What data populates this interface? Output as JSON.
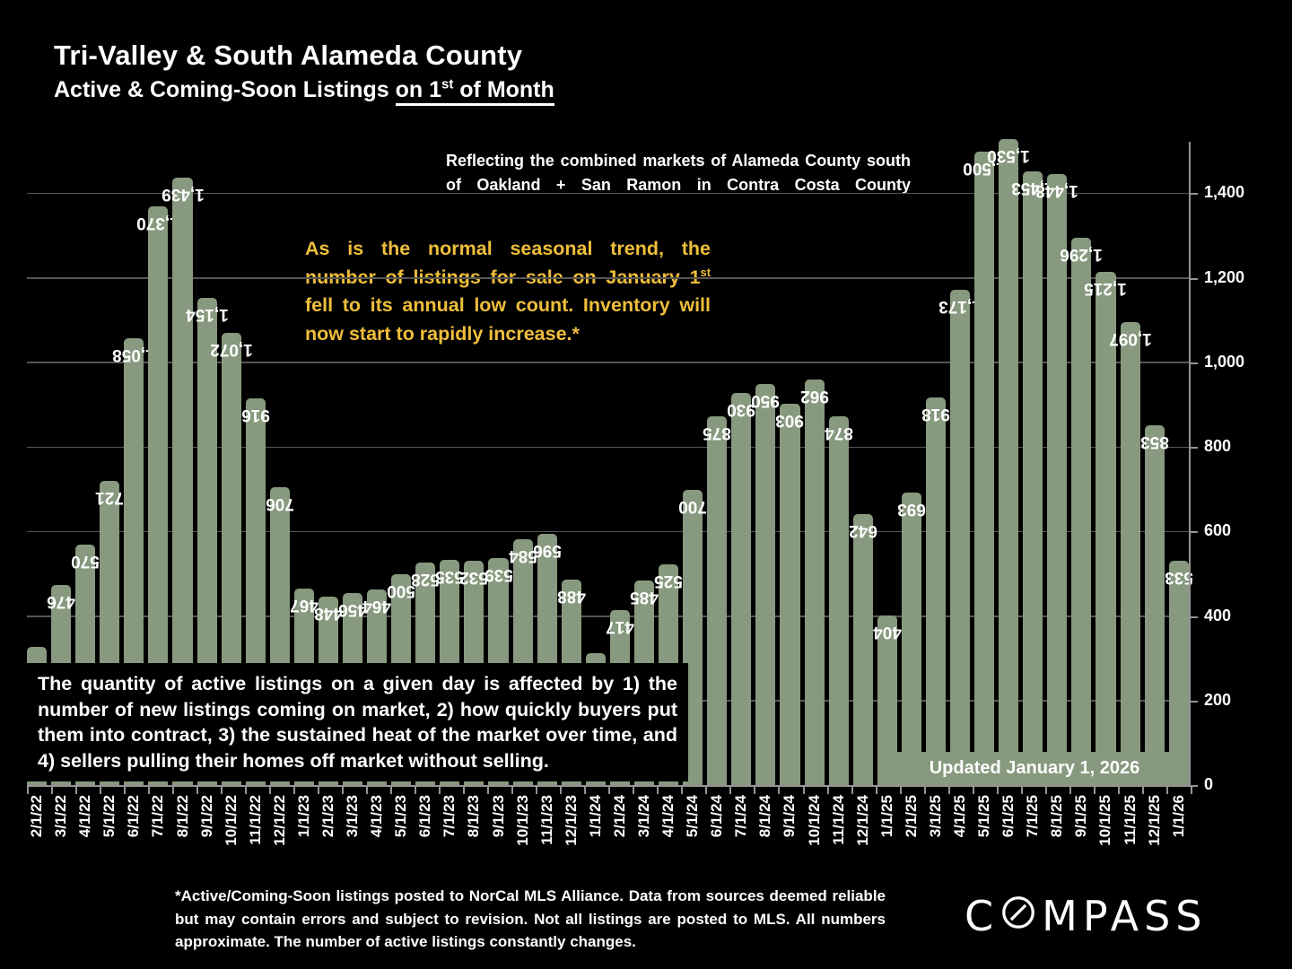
{
  "title": {
    "line1": "Tri-Valley & South Alameda County",
    "line2_pre": "Active & Coming-Soon Listings ",
    "line2_underlined_start": "on 1",
    "line2_sup": "st",
    "line2_underlined_end": " of Month"
  },
  "annotations": {
    "market_note": "Reflecting the combined markets of Alameda County south of Oakland + San Ramon in Contra Costa County",
    "seasonal_pre": "As is the normal seasonal trend, the number of listings for sale on January 1",
    "seasonal_sup": "st",
    "seasonal_post": " fell to its annual low count. Inventory will now start to rapidly increase.*",
    "explainer": "The quantity of active listings on a given day is affected by 1) the number of new listings coming on market, 2) how quickly buyers put them into contract, 3) the sustained heat of the market over time, and 4) sellers pulling their homes off market without selling.",
    "updated": "Updated January 1, 2026",
    "footnote": "*Active/Coming-Soon listings posted to NorCal MLS Alliance.  Data from sources deemed reliable but may contain errors and subject to revision.  Not all listings are posted to MLS. All numbers approximate. The number of active listings constantly changes."
  },
  "logo": {
    "pre": "C",
    "post": "MPASS",
    "name": "COMPASS"
  },
  "colors": {
    "background": "#000000",
    "bar_green": "#87997E",
    "accent_yellow": "#EFBE3B",
    "gridline_gray": "#565656",
    "axis_gray": "#949494",
    "text_white": "#FFFFFF"
  },
  "chart_data": {
    "type": "bar",
    "title": "Tri-Valley & South Alameda County — Active & Coming-Soon Listings on 1st of Month",
    "categories": [
      "2/1/22",
      "3/1/22",
      "4/1/22",
      "5/1/22",
      "6/1/22",
      "7/1/22",
      "8/1/22",
      "9/1/22",
      "10/1/22",
      "11/1/22",
      "12/1/22",
      "1/1/23",
      "2/1/23",
      "3/1/23",
      "4/1/23",
      "5/1/23",
      "6/1/23",
      "7/1/23",
      "8/1/23",
      "9/1/23",
      "10/1/23",
      "11/1/23",
      "12/1/23",
      "1/1/24",
      "2/1/24",
      "3/1/24",
      "4/1/24",
      "5/1/24",
      "6/1/24",
      "7/1/24",
      "8/1/24",
      "9/1/24",
      "10/1/24",
      "11/1/24",
      "12/1/24",
      "1/1/25",
      "2/1/25",
      "3/1/25",
      "4/1/25",
      "5/1/25",
      "6/1/25",
      "7/1/25",
      "8/1/25",
      "9/1/25",
      "10/1/25",
      "11/1/25",
      "12/1/25",
      "1/1/26"
    ],
    "values": [
      330,
      476,
      570,
      721,
      1058,
      1370,
      1439,
      1154,
      1072,
      916,
      706,
      467,
      448,
      456,
      464,
      500,
      528,
      535,
      532,
      539,
      584,
      596,
      488,
      315,
      417,
      485,
      525,
      700,
      875,
      930,
      950,
      903,
      962,
      874,
      642,
      404,
      693,
      918,
      1173,
      1500,
      1530,
      1453,
      1448,
      1296,
      1215,
      1097,
      853,
      533
    ],
    "bar_labels": [
      null,
      "476",
      "570",
      "721",
      "1,058",
      "1,370",
      "1,439",
      "1,154",
      "1,072",
      "916",
      "706",
      "467",
      "448",
      "456",
      "464",
      "500",
      "528",
      "535",
      "532",
      "539",
      "584",
      "596",
      "488",
      null,
      "417",
      "485",
      "525",
      "700",
      "875",
      "930",
      "950",
      "903",
      "962",
      "874",
      "642",
      "404",
      "693",
      "918",
      "1,173",
      "1,500",
      "1,530",
      "1,453",
      "1,448",
      "1,296",
      "1,215",
      "1,097",
      "853",
      "533"
    ],
    "unlabeled_values_note": "2/1/22 and 1/1/24 bar labels are hidden behind the explainer text box; values estimated from bar heights",
    "ylim": [
      0,
      1530
    ],
    "yticks_values": [
      0,
      200,
      400,
      600,
      800,
      1000,
      1200,
      1400
    ],
    "yticks_labels": [
      "0",
      "200",
      "400",
      "600",
      "800",
      "1,000",
      "1,200",
      "1,400"
    ],
    "axis_side": "right",
    "grid": true,
    "legend": "none",
    "bar_color": "#87997E",
    "bar_label_color": "#FFFFFF"
  }
}
